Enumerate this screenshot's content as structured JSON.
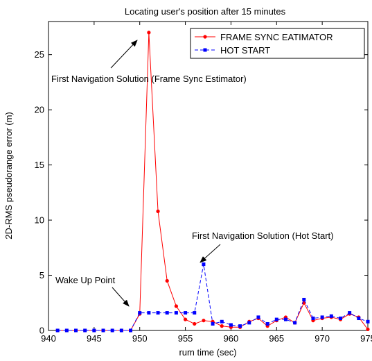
{
  "chart_data": {
    "type": "line",
    "title": "Locating user's position after 15 minutes",
    "xlabel": "rum time (sec)",
    "ylabel": "2D-RMS pseudorange error (m)",
    "xlim": [
      940,
      975
    ],
    "ylim": [
      0,
      28
    ],
    "xticks": [
      940,
      945,
      950,
      955,
      960,
      965,
      970,
      975
    ],
    "yticks": [
      0,
      5,
      10,
      15,
      20,
      25
    ],
    "grid": false,
    "legend_position": "top-right",
    "series": [
      {
        "name": "FRAME SYNC EATIMATOR",
        "color": "#ff0000",
        "marker": "circle",
        "line_style": "solid",
        "x": [
          941,
          942,
          943,
          944,
          945,
          946,
          947,
          948,
          949,
          950,
          951,
          952,
          953,
          954,
          955,
          956,
          957,
          958,
          959,
          960,
          961,
          962,
          963,
          964,
          965,
          966,
          967,
          968,
          969,
          970,
          971,
          972,
          973,
          974,
          975
        ],
        "y": [
          0,
          0,
          0,
          0,
          0,
          0,
          0,
          0,
          0,
          1.5,
          27,
          10.8,
          4.5,
          2.2,
          1.0,
          0.6,
          0.9,
          0.8,
          0.4,
          0.3,
          0.3,
          0.8,
          1.1,
          0.4,
          0.9,
          1.2,
          0.7,
          2.5,
          0.9,
          1.1,
          1.2,
          1.0,
          1.5,
          1.2,
          0.1
        ]
      },
      {
        "name": "HOT START",
        "color": "#0000ff",
        "marker": "square",
        "line_style": "dashed",
        "x": [
          941,
          942,
          943,
          944,
          945,
          946,
          947,
          948,
          949,
          950,
          951,
          952,
          953,
          954,
          955,
          956,
          957,
          958,
          959,
          960,
          961,
          962,
          963,
          964,
          965,
          966,
          967,
          968,
          969,
          970,
          971,
          972,
          973,
          974,
          975
        ],
        "y": [
          0,
          0,
          0,
          0,
          0,
          0,
          0,
          0,
          0,
          1.6,
          1.6,
          1.6,
          1.6,
          1.6,
          1.6,
          1.6,
          6.0,
          0.6,
          0.8,
          0.5,
          0.4,
          0.7,
          1.2,
          0.6,
          1.0,
          1.0,
          0.7,
          2.8,
          1.1,
          1.2,
          1.3,
          1.1,
          1.6,
          1.1,
          0.8
        ]
      }
    ],
    "annotations": [
      {
        "text": "First Navigation Solution (Frame Sync Estimator)",
        "target": [
          951,
          27
        ]
      },
      {
        "text": "First Navigation Solution (Hot Start)",
        "target": [
          957,
          6.0
        ]
      },
      {
        "text": "Wake Up Point",
        "target": [
          950,
          1.5
        ]
      }
    ]
  }
}
